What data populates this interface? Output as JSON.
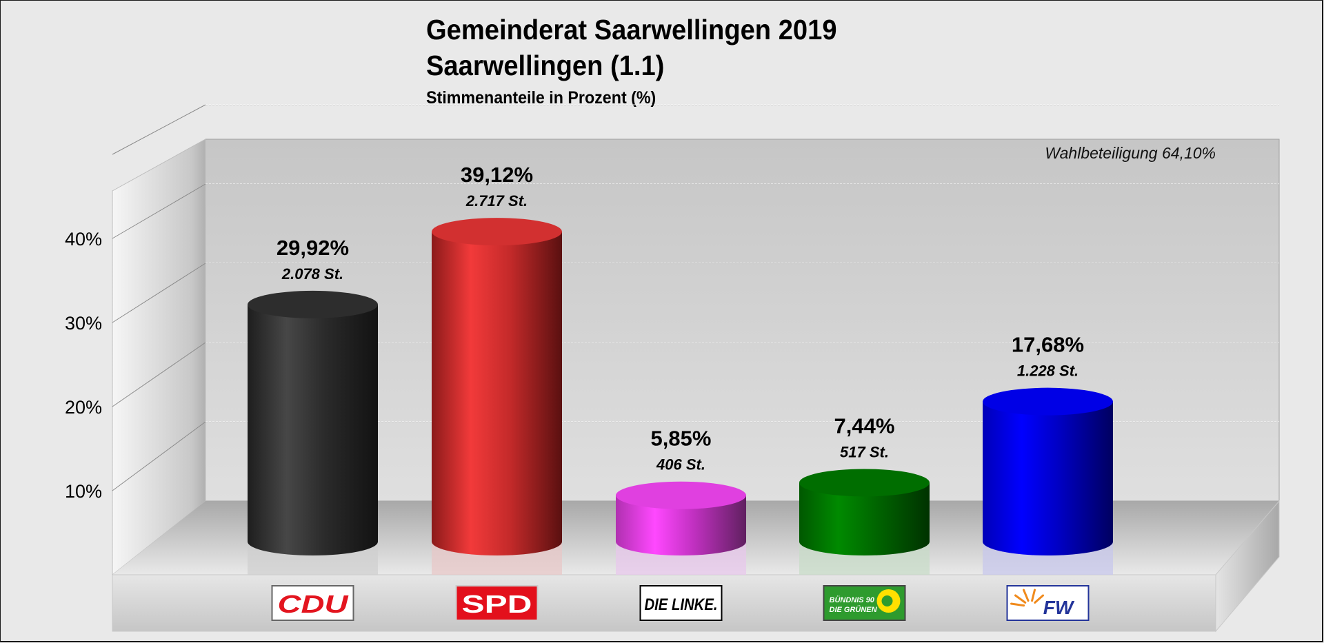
{
  "header": {
    "title": "Gemeinderat Saarwellingen 2019",
    "subtitle": "Saarwellingen (1.1)",
    "caption": "Stimmenanteile in Prozent (%)"
  },
  "turnout_label": "Wahlbeteiligung 64,10%",
  "chart_data": {
    "type": "bar",
    "style": "3d-cylinder",
    "title": "Gemeinderat Saarwellingen 2019",
    "subtitle": "Saarwellingen (1.1)",
    "ylabel": "Stimmenanteile in Prozent (%)",
    "xlabel": "",
    "ylim": [
      0,
      50
    ],
    "yticks": [
      10,
      20,
      30,
      40
    ],
    "ytick_labels": [
      "10%",
      "20%",
      "30%",
      "40%"
    ],
    "grid": true,
    "annotation": "Wahlbeteiligung 64,10%",
    "categories": [
      "CDU",
      "SPD",
      "DIE LINKE.",
      "BÜNDNIS 90 DIE GRÜNEN",
      "FW"
    ],
    "values": [
      29.92,
      39.12,
      5.85,
      7.44,
      17.68
    ],
    "value_labels": [
      "29,92%",
      "39,12%",
      "5,85%",
      "7,44%",
      "17,68%"
    ],
    "votes": [
      2078,
      2717,
      406,
      517,
      1228
    ],
    "vote_labels": [
      "2.078 St.",
      "2.717 St.",
      "406 St.",
      "517 St.",
      "1.228 St."
    ],
    "colors": [
      "#333333",
      "#e0302f",
      "#e040e0",
      "#007a00",
      "#0000ee"
    ]
  },
  "logos": [
    {
      "text": "CDU",
      "bg": "#ffffff",
      "fg": "#e3151f",
      "border": "#666666"
    },
    {
      "text": "SPD",
      "bg": "#e3101c",
      "fg": "#ffffff",
      "border": "#cccccc"
    },
    {
      "text": "DIE LINKE.",
      "bg": "#ffffff",
      "fg": "#000000",
      "border": "#000000"
    },
    {
      "text1": "BÜNDNIS 90",
      "text2": "DIE GRÜNEN",
      "bg": "#2e9b2e",
      "fg": "#ffffff",
      "accent": "#ffe000"
    },
    {
      "text": "FW",
      "bg": "#ffffff",
      "fg": "#23349a",
      "accent": "#f08a1c",
      "border": "#23349a"
    }
  ]
}
